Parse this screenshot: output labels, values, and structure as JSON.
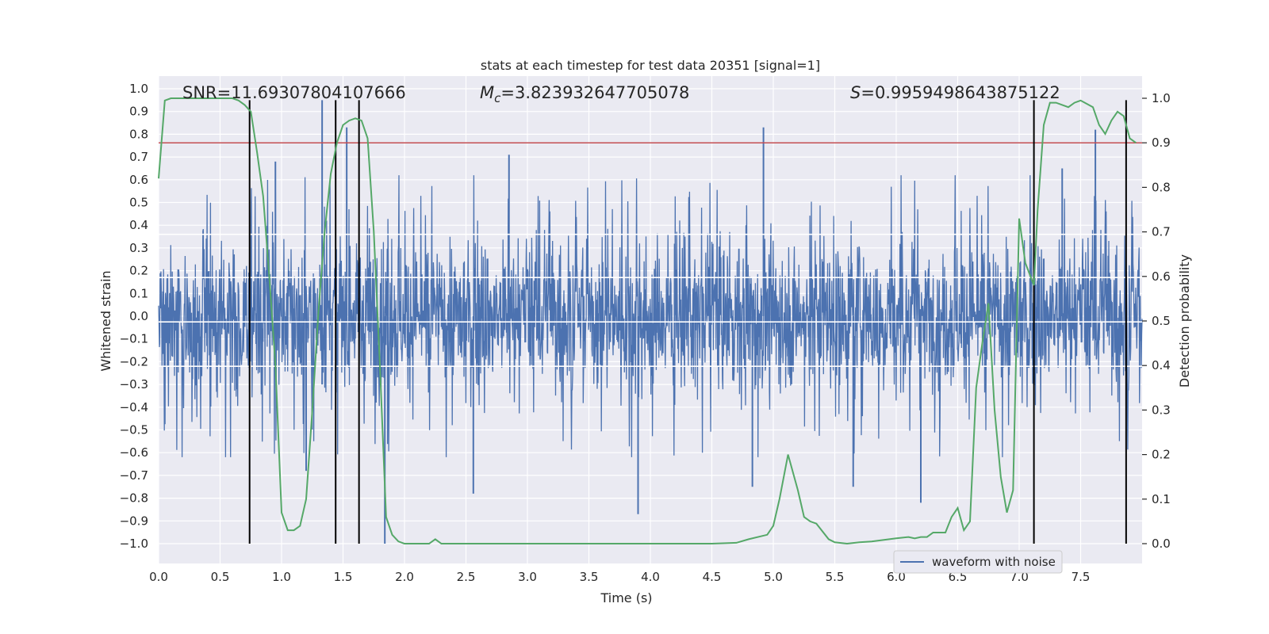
{
  "chart_data": {
    "type": "line",
    "title": "stats at each timestep for test data 20351 [signal=1]",
    "xlabel": "Time (s)",
    "ylabel_left": "Whitened strain",
    "ylabel_right": "Detection probability",
    "xlim": [
      0,
      8
    ],
    "ylim_left": [
      -1.1,
      1.05
    ],
    "ylim_right": [
      -0.05,
      1.03
    ],
    "x_ticks": [
      0.0,
      0.5,
      1.0,
      1.5,
      2.0,
      2.5,
      3.0,
      3.5,
      4.0,
      4.5,
      5.0,
      5.5,
      6.0,
      6.5,
      7.0,
      7.5
    ],
    "x_tick_labels": [
      "0.0",
      "0.5",
      "1.0",
      "1.5",
      "2.0",
      "2.5",
      "3.0",
      "3.5",
      "4.0",
      "4.5",
      "5.0",
      "5.5",
      "6.0",
      "6.5",
      "7.0",
      "7.5"
    ],
    "y_left_ticks": [
      1.0,
      0.9,
      0.8,
      0.7,
      0.6,
      0.5,
      0.4,
      0.3,
      0.2,
      0.1,
      0.0,
      -0.1,
      -0.2,
      -0.3,
      -0.4,
      -0.5,
      -0.6,
      -0.7,
      -0.8,
      -0.9,
      -1.0
    ],
    "y_left_tick_labels": [
      "1.0",
      "0.9",
      "0.8",
      "0.7",
      "0.6",
      "0.5",
      "0.4",
      "0.3",
      "0.2",
      "0.1",
      "0.0",
      "−0.1",
      "−0.2",
      "−0.3",
      "−0.4",
      "−0.5",
      "−0.6",
      "−0.7",
      "−0.8",
      "−0.9",
      "−1.0"
    ],
    "y_right_ticks": [
      1.0,
      0.9,
      0.8,
      0.7,
      0.6,
      0.5,
      0.4,
      0.3,
      0.2,
      0.1,
      0.0
    ],
    "y_right_tick_labels": [
      "1.0",
      "0.9",
      "0.8",
      "0.7",
      "0.6",
      "0.5",
      "0.4",
      "0.3",
      "0.2",
      "0.1",
      "0.0"
    ],
    "annotations": {
      "snr": "SNR=11.69307804107666",
      "mc_symbol": "M",
      "mc_sub": "c",
      "mc_value": "=3.823932647705078",
      "s_symbol": "S",
      "s_value": "=0.9959498643875122"
    },
    "legend": {
      "label": "waveform with noise",
      "position": "lower-right"
    },
    "threshold": {
      "value": 0.9,
      "axis": "right",
      "color": "#c44e52"
    },
    "vlines": {
      "x": [
        0.74,
        1.44,
        1.63,
        7.12,
        7.87
      ],
      "ymin": -1.0,
      "ymax": 0.95,
      "color": "#000000"
    },
    "horizontal_white_lines": [
      0.36,
      0.17,
      -0.025,
      -0.22
    ],
    "waveform": {
      "name": "waveform with noise",
      "color": "#4c72b0",
      "duration_s": 8.0,
      "typical_extent": 0.35,
      "notable_spikes": [
        {
          "t": 1.33,
          "v": 0.95
        },
        {
          "t": 1.33,
          "v": -0.3
        },
        {
          "t": 1.53,
          "v": 0.83
        },
        {
          "t": 1.84,
          "v": -1.0
        },
        {
          "t": 4.92,
          "v": 0.83
        },
        {
          "t": 2.56,
          "v": -0.78
        },
        {
          "t": 3.9,
          "v": -0.87
        },
        {
          "t": 4.83,
          "v": -0.75
        },
        {
          "t": 6.2,
          "v": -0.82
        },
        {
          "t": 5.65,
          "v": -0.75
        },
        {
          "t": 2.85,
          "v": 0.71
        },
        {
          "t": 0.95,
          "v": 0.68
        },
        {
          "t": 1.2,
          "v": -0.68
        },
        {
          "t": 7.35,
          "v": 0.65
        },
        {
          "t": 7.62,
          "v": 0.82
        }
      ]
    },
    "series": [
      {
        "name": "detection probability",
        "axis": "right",
        "color": "#55a868",
        "x": [
          0.0,
          0.05,
          0.1,
          0.2,
          0.3,
          0.4,
          0.5,
          0.6,
          0.65,
          0.7,
          0.75,
          0.8,
          0.85,
          0.9,
          0.95,
          1.0,
          1.05,
          1.1,
          1.15,
          1.2,
          1.25,
          1.3,
          1.35,
          1.4,
          1.45,
          1.5,
          1.55,
          1.6,
          1.65,
          1.7,
          1.75,
          1.8,
          1.85,
          1.9,
          1.95,
          2.0,
          2.1,
          2.2,
          2.25,
          2.3,
          2.4,
          2.5,
          2.6,
          2.8,
          3.0,
          3.5,
          4.0,
          4.5,
          4.7,
          4.8,
          4.95,
          5.0,
          5.05,
          5.12,
          5.2,
          5.25,
          5.3,
          5.35,
          5.45,
          5.5,
          5.6,
          5.7,
          5.8,
          6.0,
          6.1,
          6.15,
          6.2,
          6.25,
          6.3,
          6.4,
          6.45,
          6.5,
          6.55,
          6.6,
          6.65,
          6.7,
          6.75,
          6.8,
          6.85,
          6.9,
          6.95,
          7.0,
          7.05,
          7.12,
          7.15,
          7.2,
          7.25,
          7.3,
          7.35,
          7.4,
          7.45,
          7.5,
          7.6,
          7.65,
          7.7,
          7.75,
          7.8,
          7.85,
          7.9,
          7.95
        ],
        "y": [
          0.82,
          0.995,
          1.0,
          1.0,
          1.0,
          1.0,
          1.0,
          1.0,
          0.995,
          0.985,
          0.97,
          0.88,
          0.78,
          0.6,
          0.4,
          0.07,
          0.03,
          0.03,
          0.04,
          0.1,
          0.3,
          0.52,
          0.7,
          0.83,
          0.9,
          0.94,
          0.95,
          0.955,
          0.95,
          0.91,
          0.7,
          0.4,
          0.06,
          0.02,
          0.005,
          0.0,
          0.0,
          0.0,
          0.01,
          0.0,
          0.0,
          0.0,
          0.0,
          0.0,
          0.0,
          0.0,
          0.0,
          0.0,
          0.002,
          0.01,
          0.02,
          0.04,
          0.1,
          0.2,
          0.12,
          0.06,
          0.05,
          0.045,
          0.01,
          0.003,
          0.0,
          0.003,
          0.005,
          0.012,
          0.015,
          0.012,
          0.015,
          0.015,
          0.025,
          0.025,
          0.06,
          0.08,
          0.03,
          0.05,
          0.35,
          0.45,
          0.54,
          0.3,
          0.15,
          0.07,
          0.12,
          0.73,
          0.63,
          0.58,
          0.75,
          0.94,
          0.99,
          0.99,
          0.985,
          0.98,
          0.99,
          0.995,
          0.98,
          0.94,
          0.92,
          0.95,
          0.97,
          0.96,
          0.91,
          0.9
        ]
      }
    ]
  }
}
